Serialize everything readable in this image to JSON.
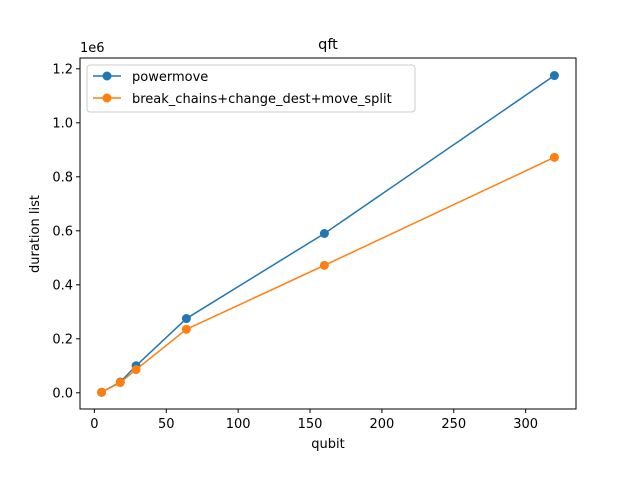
{
  "chart_data": {
    "type": "line",
    "title": "qft",
    "xlabel": "qubit",
    "ylabel": "duration list",
    "y_scale_label": "1e6",
    "xlim": [
      -10,
      335
    ],
    "ylim": [
      -60000,
      1240000
    ],
    "xticks": [
      0,
      50,
      100,
      150,
      200,
      250,
      300
    ],
    "yticks": [
      0,
      200000,
      400000,
      600000,
      800000,
      1000000,
      1200000
    ],
    "xtick_labels": [
      "0",
      "50",
      "100",
      "150",
      "200",
      "250",
      "300"
    ],
    "ytick_labels": [
      "0.0",
      "0.2",
      "0.4",
      "0.6",
      "0.8",
      "1.0",
      "1.2"
    ],
    "grid": false,
    "legend_position": "top-left",
    "series": [
      {
        "name": "powermove",
        "color": "#1f77b4",
        "x": [
          5,
          18,
          29,
          64,
          160,
          320
        ],
        "y": [
          2000,
          40000,
          100000,
          275000,
          590000,
          1175000
        ]
      },
      {
        "name": "break_chains+change_dest+move_split",
        "color": "#ff7f0e",
        "x": [
          5,
          18,
          29,
          64,
          160,
          320
        ],
        "y": [
          2000,
          38000,
          86000,
          235000,
          472000,
          872000
        ]
      }
    ]
  }
}
